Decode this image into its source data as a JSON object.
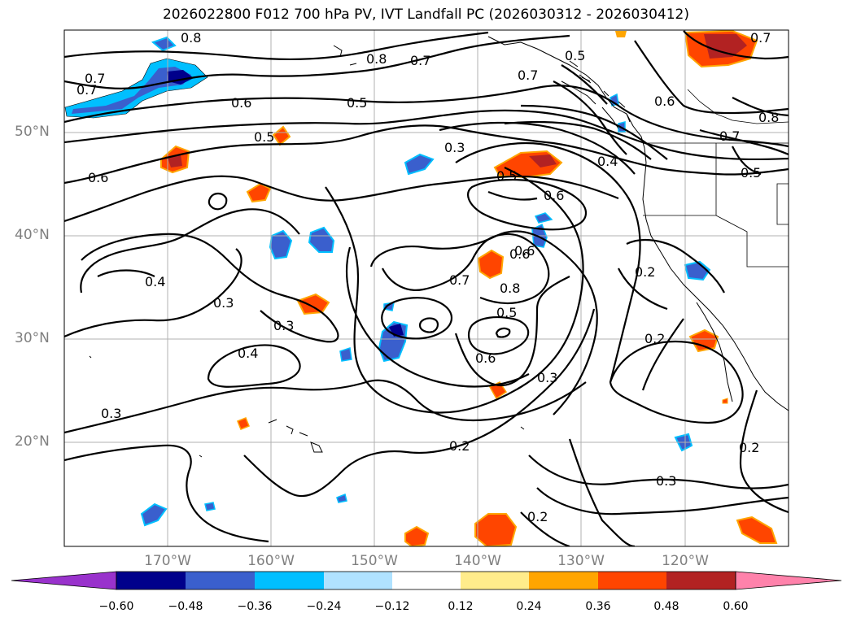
{
  "title": "2026022800 F012 700 hPa PV, IVT Landfall PC (2026030312 - 2026030412)",
  "lat_labels": [
    "50°N",
    "40°N",
    "30°N",
    "20°N"
  ],
  "lon_labels": [
    "170°W",
    "160°W",
    "150°W",
    "140°W",
    "130°W",
    "120°W"
  ],
  "colorbar": {
    "ticks": [
      "−0.60",
      "−0.48",
      "−0.36",
      "−0.24",
      "−0.12",
      "0.12",
      "0.24",
      "0.36",
      "0.48",
      "0.60"
    ],
    "colors": [
      "#9932cc",
      "#00008b",
      "#3a5fcd",
      "#00bfff",
      "#b0e2ff",
      "#ffffff",
      "#ffec8b",
      "#ffa500",
      "#ff4500",
      "#b22222",
      "#ff82ab"
    ]
  },
  "contour_labels": [
    "0.8",
    "0.7",
    "0.7",
    "0.8",
    "0.7",
    "0.5",
    "0.7",
    "0.6",
    "0.5",
    "0.6",
    "0.8",
    "0.5",
    "0.3",
    "0.7",
    "0.6",
    "0.4",
    "0.5",
    "0.6",
    "0.6",
    "0.5",
    "0.4",
    "0.3",
    "0.3",
    "0.4",
    "0.7",
    "0.6",
    "0.8",
    "0.5",
    "0.6",
    "0.3",
    "0.2",
    "0.2",
    "0.3",
    "0.2",
    "0.3",
    "0.2",
    "0.2",
    "0.7"
  ],
  "map": {
    "projection": "PlateCarree",
    "lon_range": [
      -180,
      -110
    ],
    "lat_range": [
      10,
      60
    ],
    "colors": {
      "contour": "#000000",
      "coast": "#000000",
      "grid": "#b0b0b0"
    }
  }
}
